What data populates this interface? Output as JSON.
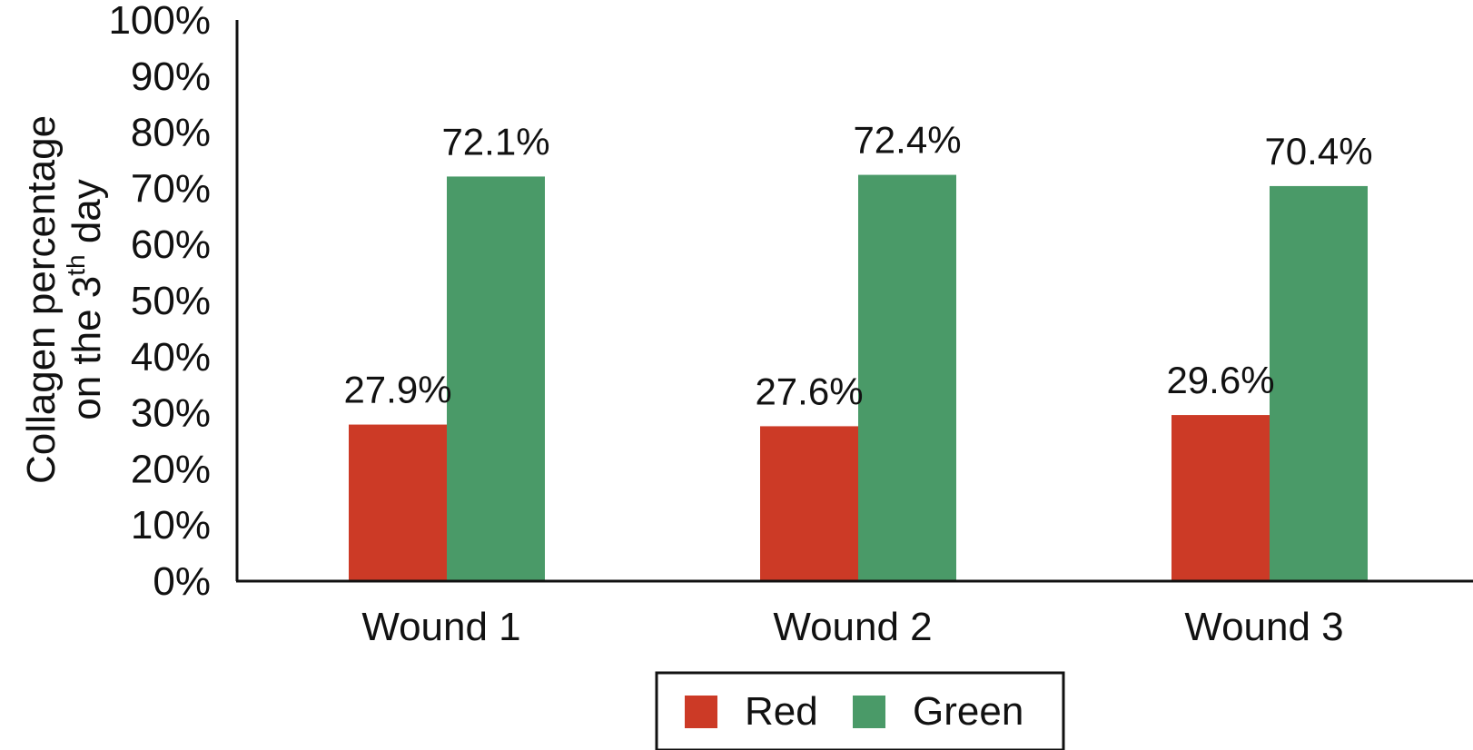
{
  "chart_data": {
    "type": "bar",
    "categories": [
      "Wound 1",
      "Wound 2",
      "Wound 3"
    ],
    "series": [
      {
        "name": "Red",
        "color": "#cc3a26",
        "values": [
          27.9,
          27.6,
          29.6
        ],
        "labels": [
          "27.9%",
          "27.6%",
          "29.6%"
        ]
      },
      {
        "name": "Green",
        "color": "#4a9a68",
        "values": [
          72.1,
          72.4,
          70.4
        ],
        "labels": [
          "72.1%",
          "72.4%",
          "70.4%"
        ]
      }
    ],
    "ylabel_line1": "Collagen percentage",
    "ylabel_line2_pre": "on the 3",
    "ylabel_line2_sup": "th",
    "ylabel_line2_post": " day",
    "ylim": [
      0,
      100
    ],
    "yticks": [
      "0%",
      "10%",
      "20%",
      "30%",
      "40%",
      "50%",
      "60%",
      "70%",
      "80%",
      "90%",
      "100%"
    ],
    "grid": false,
    "legend_position": "bottom-center"
  }
}
